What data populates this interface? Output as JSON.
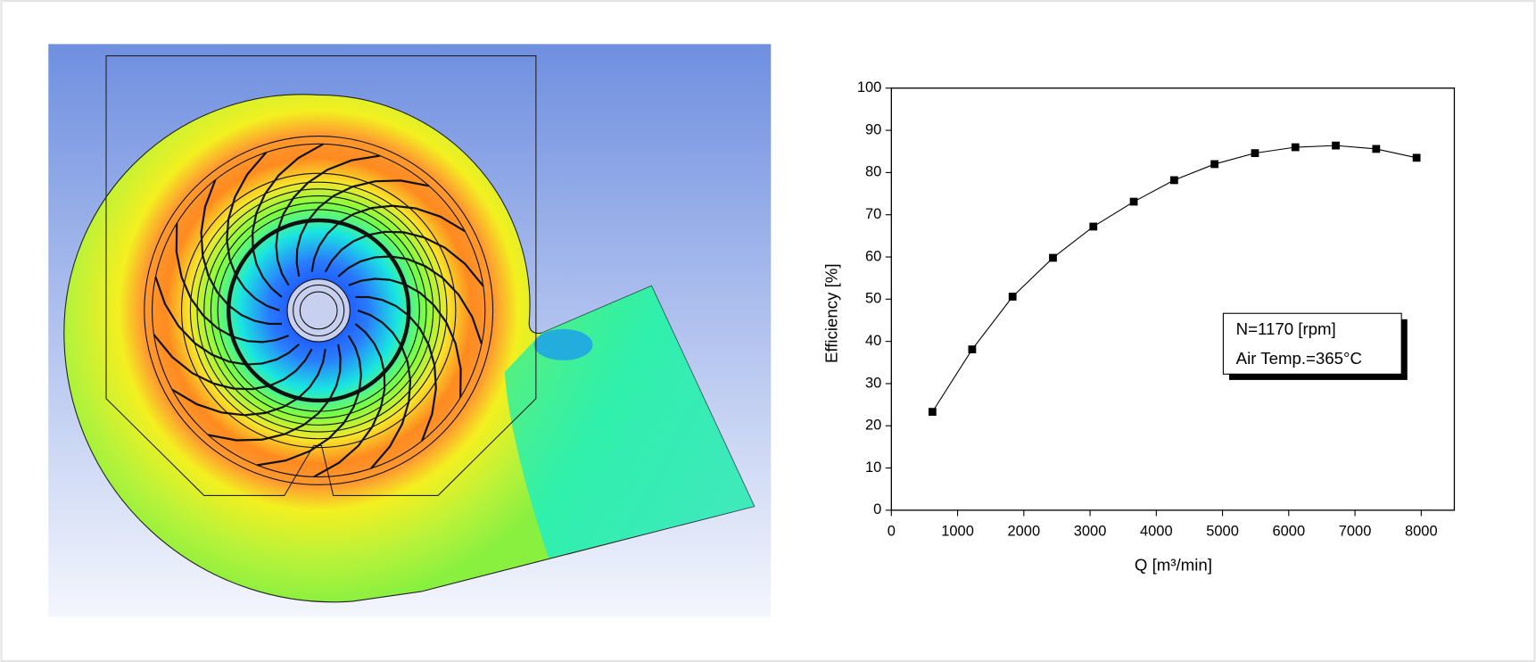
{
  "chart_data": {
    "type": "line",
    "xlabel": "Q [m³/min]",
    "ylabel": "Efficiency [%]",
    "annotations": [
      "N=1170 [rpm]",
      "Air Temp.=365°C"
    ],
    "x": [
      620,
      1220,
      1830,
      2440,
      3050,
      3660,
      4270,
      4880,
      5490,
      6100,
      6710,
      7320,
      7930
    ],
    "values": [
      23.3,
      38.1,
      50.6,
      59.8,
      67.2,
      73.1,
      78.2,
      82.0,
      84.6,
      86.0,
      86.4,
      85.6,
      83.5
    ],
    "color": "#000000",
    "marker": "square",
    "xlim": [
      0,
      8500
    ],
    "xticks": [
      0,
      1000,
      2000,
      3000,
      4000,
      5000,
      6000,
      7000,
      8000
    ],
    "ylim": [
      0,
      100
    ],
    "yticks": [
      0,
      10,
      20,
      30,
      40,
      50,
      60,
      70,
      80,
      90,
      100
    ]
  }
}
